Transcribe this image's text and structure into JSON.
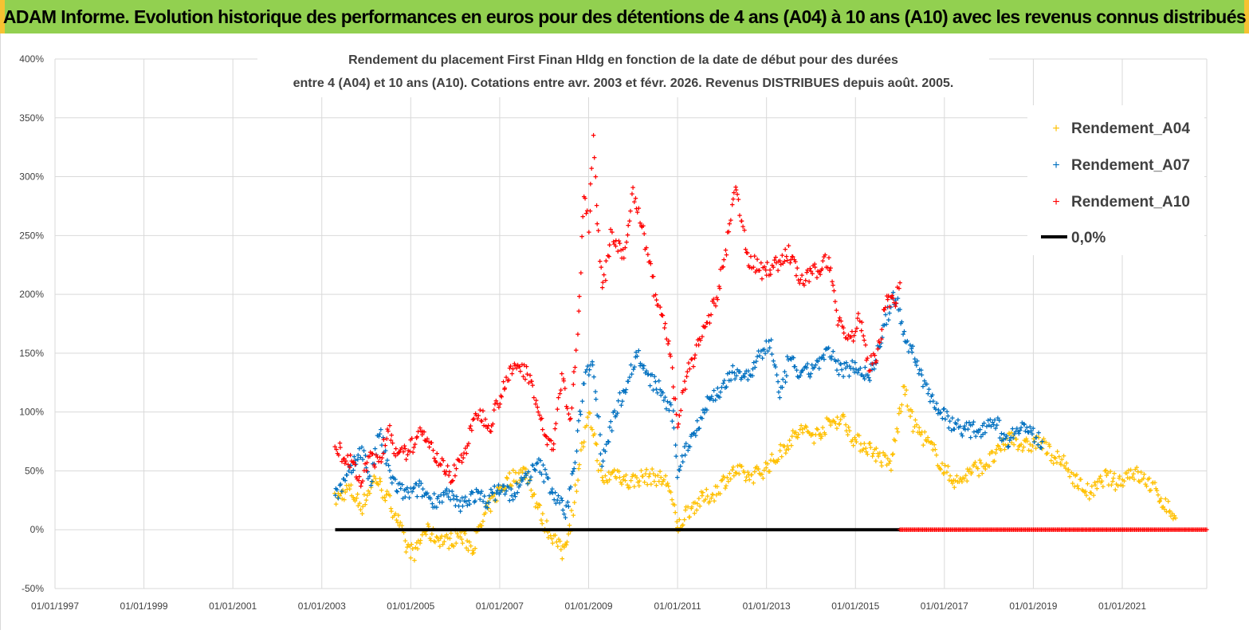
{
  "banner": {
    "title": "ADAM Informe. Evolution historique des performances en euros pour des détentions de 4 ans (A04) à 10 ans (A10) avec les revenus connus distribués"
  },
  "colors": {
    "banner_bg": "#92d050",
    "a04": "#ffc000",
    "a07": "#0070c0",
    "a10": "#ff0000",
    "zero_line": "#000000"
  },
  "chart_data": {
    "type": "scatter",
    "title_lines": [
      "Rendement du placement First Finan Hldg  en fonction de la date de début pour des durées",
      "entre 4 (A04) et 10 ans (A10). Cotations entre avr. 2003 et févr. 2026. Revenus DISTRIBUES depuis août. 2005."
    ],
    "xlabel": "",
    "ylabel": "",
    "ylim": [
      -50,
      400
    ],
    "yticks": [
      -50,
      0,
      50,
      100,
      150,
      200,
      250,
      300,
      350,
      400
    ],
    "ytick_labels": [
      "-50%",
      "0%",
      "50%",
      "100%",
      "150%",
      "200%",
      "250%",
      "300%",
      "350%",
      "400%"
    ],
    "xlim": [
      1997.0,
      2022.9
    ],
    "xticks": [
      1997,
      1999,
      2001,
      2003,
      2005,
      2007,
      2009,
      2011,
      2013,
      2015,
      2017,
      2019,
      2021
    ],
    "xtick_labels": [
      "01/01/1997",
      "01/01/1999",
      "01/01/2001",
      "01/01/2003",
      "01/01/2005",
      "01/01/2007",
      "01/01/2009",
      "01/01/2011",
      "01/01/2013",
      "01/01/2015",
      "01/01/2017",
      "01/01/2019",
      "01/01/2021"
    ],
    "legend_position": "top-right",
    "series": [
      {
        "name": "Rendement_A04",
        "color": "#ffc000",
        "x": [
          2003.3,
          2003.6,
          2003.9,
          2004.2,
          2004.5,
          2004.7,
          2004.9,
          2005.1,
          2005.3,
          2005.5,
          2005.8,
          2006.1,
          2006.4,
          2006.7,
          2007.0,
          2007.3,
          2007.6,
          2007.8,
          2008.0,
          2008.2,
          2008.4,
          2008.6,
          2008.8,
          2009.0,
          2009.1,
          2009.3,
          2009.6,
          2009.9,
          2010.2,
          2010.5,
          2010.8,
          2011.0,
          2011.2,
          2011.5,
          2011.8,
          2012.0,
          2012.3,
          2012.6,
          2012.9,
          2013.2,
          2013.5,
          2013.8,
          2014.1,
          2014.4,
          2014.7,
          2015.0,
          2015.3,
          2015.6,
          2015.8,
          2016.0,
          2016.1,
          2016.3,
          2016.5,
          2016.8,
          2017.0,
          2017.3,
          2017.6,
          2017.9,
          2018.2,
          2018.5,
          2018.8,
          2019.1,
          2019.4,
          2019.7,
          2020.0,
          2020.3,
          2020.6,
          2020.9,
          2021.2,
          2021.4,
          2021.6,
          2021.8,
          2022.0,
          2022.2
        ],
        "values": [
          25,
          35,
          20,
          45,
          25,
          10,
          -15,
          -20,
          0,
          -5,
          -10,
          -5,
          -15,
          15,
          35,
          45,
          50,
          25,
          5,
          -5,
          -20,
          5,
          60,
          95,
          85,
          40,
          50,
          40,
          45,
          45,
          40,
          0,
          15,
          25,
          30,
          40,
          50,
          45,
          50,
          60,
          75,
          85,
          80,
          90,
          95,
          75,
          70,
          60,
          55,
          100,
          120,
          90,
          80,
          65,
          50,
          40,
          50,
          55,
          65,
          80,
          70,
          75,
          65,
          55,
          40,
          30,
          45,
          40,
          50,
          45,
          40,
          30,
          20,
          10
        ]
      },
      {
        "name": "Rendement_A07",
        "color": "#0070c0",
        "x": [
          2003.3,
          2003.6,
          2003.9,
          2004.1,
          2004.3,
          2004.5,
          2004.7,
          2004.9,
          2005.2,
          2005.5,
          2005.8,
          2006.1,
          2006.4,
          2006.7,
          2007.0,
          2007.3,
          2007.6,
          2007.9,
          2008.1,
          2008.3,
          2008.5,
          2008.7,
          2008.9,
          2009.1,
          2009.3,
          2009.6,
          2009.9,
          2010.1,
          2010.3,
          2010.6,
          2010.9,
          2011.0,
          2011.2,
          2011.4,
          2011.7,
          2012.0,
          2012.3,
          2012.6,
          2012.9,
          2013.1,
          2013.3,
          2013.5,
          2013.8,
          2014.1,
          2014.4,
          2014.7,
          2015.0,
          2015.3,
          2015.5,
          2015.7,
          2015.9,
          2016.1,
          2016.3,
          2016.6,
          2016.9,
          2017.2,
          2017.5,
          2017.8,
          2018.1,
          2018.4,
          2018.7,
          2019.0,
          2019.2
        ],
        "values": [
          30,
          45,
          70,
          40,
          85,
          50,
          35,
          30,
          35,
          25,
          30,
          20,
          30,
          25,
          35,
          30,
          45,
          55,
          40,
          25,
          15,
          60,
          130,
          145,
          60,
          100,
          130,
          150,
          130,
          120,
          95,
          50,
          70,
          85,
          110,
          120,
          135,
          130,
          150,
          160,
          110,
          145,
          130,
          140,
          150,
          135,
          140,
          130,
          150,
          180,
          200,
          165,
          150,
          120,
          100,
          90,
          85,
          85,
          95,
          75,
          90,
          80,
          75
        ]
      },
      {
        "name": "Rendement_A10",
        "color": "#ff0000",
        "x": [
          2003.3,
          2003.6,
          2003.9,
          2004.1,
          2004.3,
          2004.5,
          2004.7,
          2005.0,
          2005.3,
          2005.6,
          2005.9,
          2006.2,
          2006.5,
          2006.8,
          2007.1,
          2007.4,
          2007.7,
          2008.0,
          2008.2,
          2008.4,
          2008.6,
          2008.8,
          2008.9,
          2009.0,
          2009.1,
          2009.3,
          2009.5,
          2009.8,
          2010.0,
          2010.3,
          2010.5,
          2010.8,
          2011.0,
          2011.2,
          2011.4,
          2011.6,
          2011.9,
          2012.1,
          2012.3,
          2012.6,
          2012.9,
          2013.2,
          2013.5,
          2013.8,
          2014.1,
          2014.4,
          2014.6,
          2014.9,
          2015.1,
          2015.3,
          2015.5,
          2015.7,
          2015.9,
          2016.0
        ],
        "values": [
          70,
          60,
          40,
          65,
          55,
          90,
          60,
          70,
          85,
          60,
          45,
          65,
          100,
          90,
          125,
          140,
          130,
          80,
          70,
          130,
          90,
          200,
          290,
          260,
          330,
          200,
          250,
          230,
          290,
          240,
          200,
          160,
          90,
          130,
          150,
          170,
          200,
          240,
          290,
          230,
          220,
          225,
          235,
          210,
          220,
          230,
          180,
          160,
          180,
          140,
          150,
          200,
          190,
          210
        ]
      },
      {
        "name": "0,0%",
        "color": "#000000",
        "type": "line",
        "x": [
          2003.3,
          2016.0
        ],
        "values": [
          0,
          0
        ]
      }
    ],
    "zero_markers": {
      "name": "Rendement_A10",
      "color": "#ff0000",
      "x_start": 2016.0,
      "x_end": 2022.9,
      "value": 0
    }
  }
}
